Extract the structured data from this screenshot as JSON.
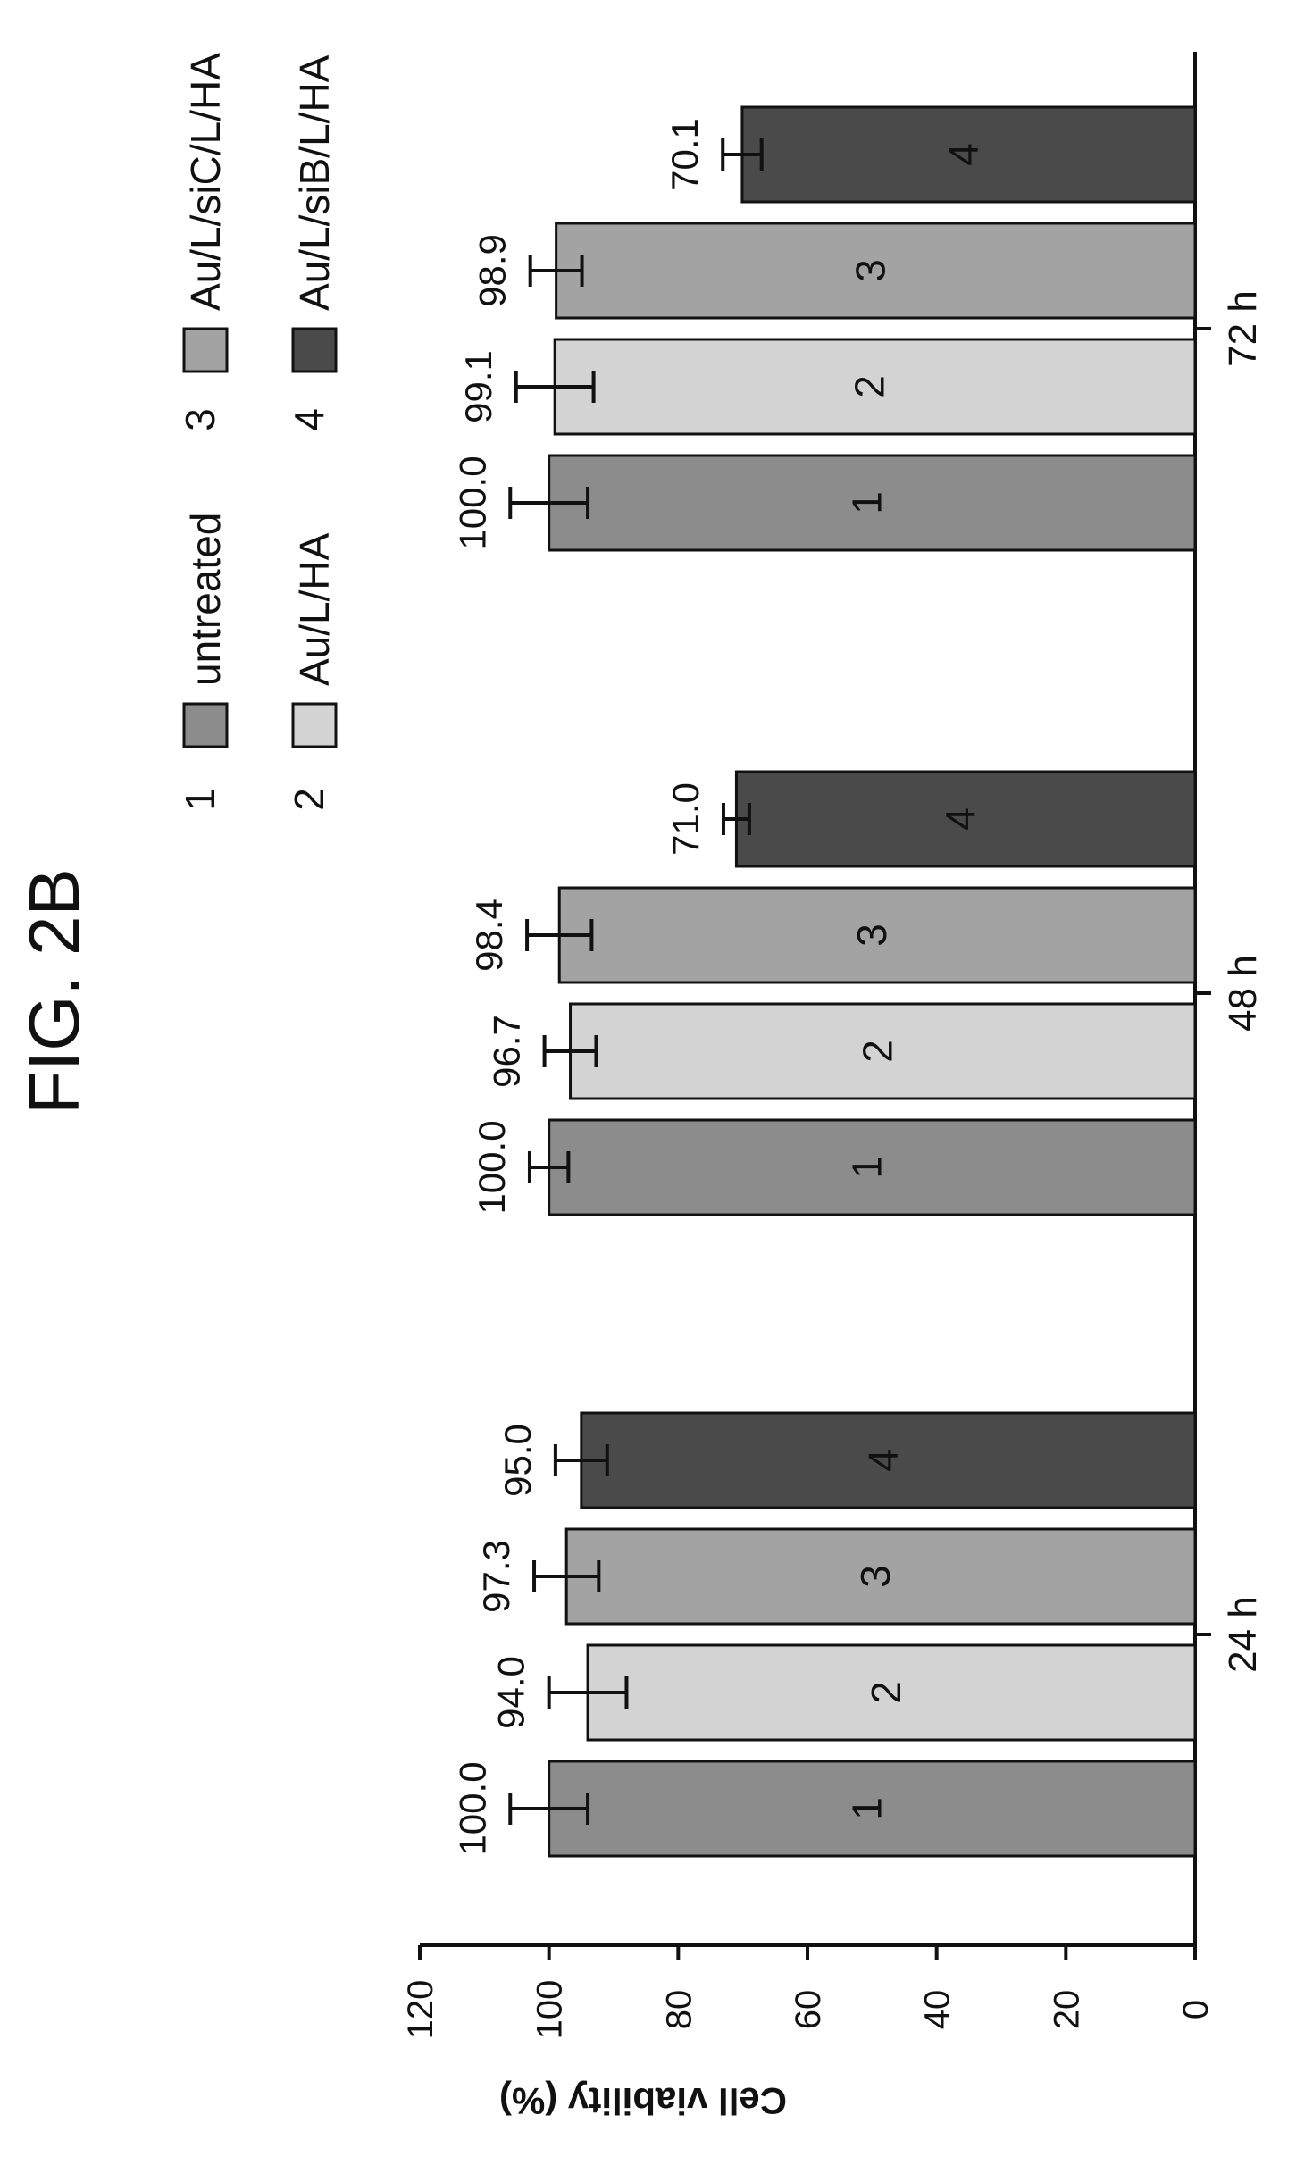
{
  "figure": {
    "title": "FIG. 2B"
  },
  "chart_data": {
    "type": "bar",
    "title": "",
    "ylabel": "Cell viability (%)",
    "xlabel": "",
    "ylim": [
      0,
      120
    ],
    "yticks": [
      0,
      20,
      40,
      60,
      80,
      100,
      120
    ],
    "categories": [
      "24 h",
      "48 h",
      "72 h"
    ],
    "series": [
      {
        "id": "1",
        "name": "untreated",
        "color": "#8c8c8c",
        "values": [
          100.0,
          100.0,
          100.0
        ],
        "errors": [
          6,
          3,
          6
        ],
        "labels": [
          "100.0",
          "100.0",
          "100.0"
        ]
      },
      {
        "id": "2",
        "name": "Au/L/HA",
        "color": "#d3d3d3",
        "values": [
          94.0,
          96.7,
          99.1
        ],
        "errors": [
          6,
          4,
          6
        ],
        "labels": [
          "94.0",
          "96.7",
          "99.1"
        ]
      },
      {
        "id": "3",
        "name": "Au/L/siC/L/HA",
        "color": "#a3a3a3",
        "values": [
          97.3,
          98.4,
          98.9
        ],
        "errors": [
          5,
          5,
          4
        ],
        "labels": [
          "97.3",
          "98.4",
          "98.9"
        ]
      },
      {
        "id": "4",
        "name": "Au/L/siB/L/HA",
        "color": "#4a4a4a",
        "values": [
          95.0,
          71.0,
          70.1
        ],
        "errors": [
          4,
          2,
          3
        ],
        "labels": [
          "95.0",
          "71.0",
          "70.1"
        ]
      }
    ],
    "legend": {
      "position": "top"
    },
    "grid": false
  }
}
